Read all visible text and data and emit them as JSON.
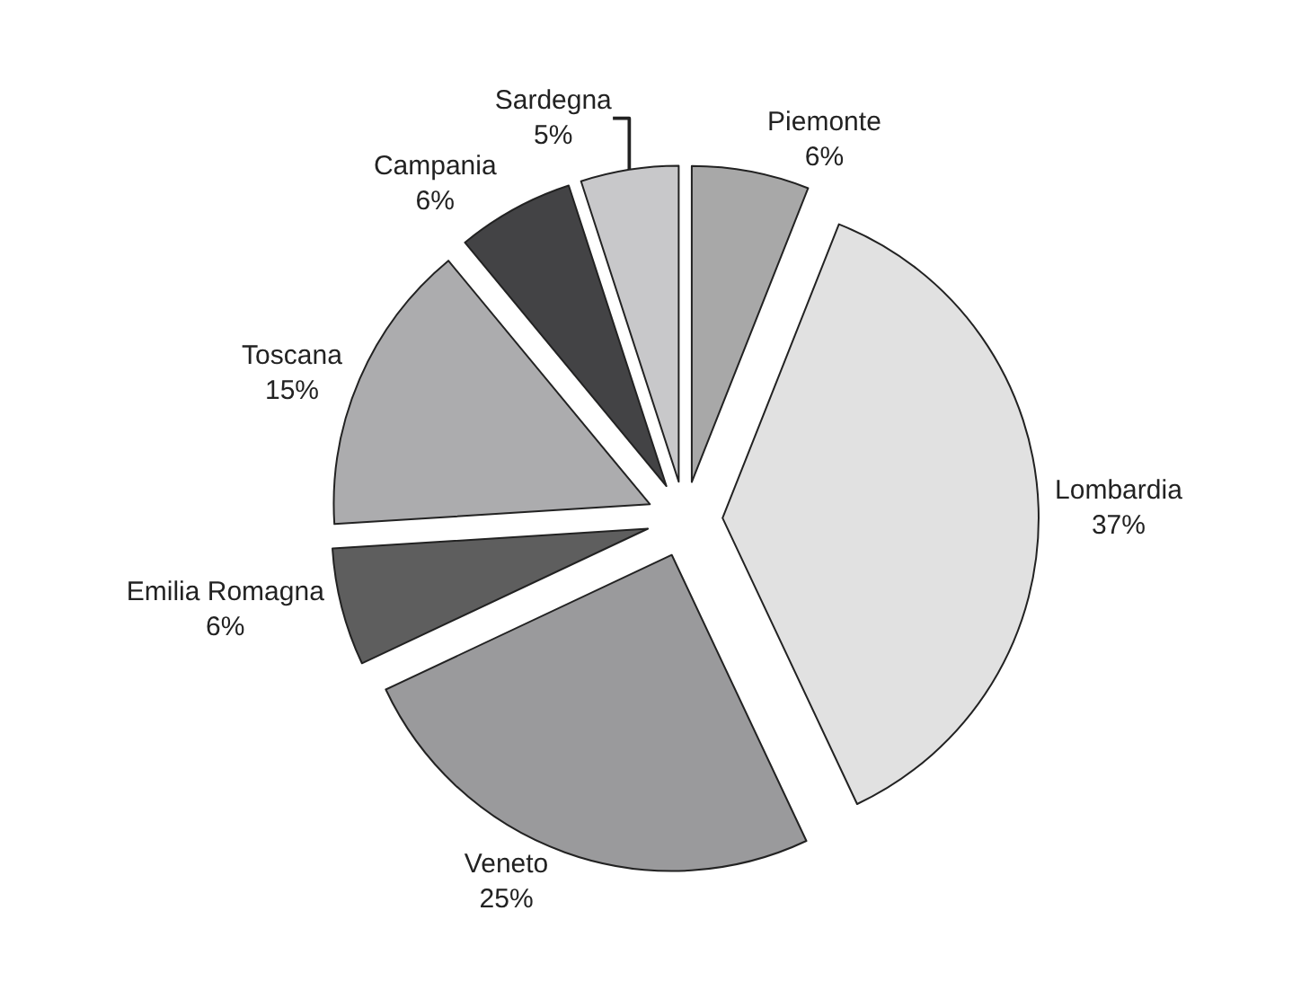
{
  "chart_data": {
    "type": "pie",
    "categories": [
      "Piemonte",
      "Lombardia",
      "Veneto",
      "Emilia Romagna",
      "Toscana",
      "Campania",
      "Sardegna"
    ],
    "values": [
      6,
      37,
      25,
      6,
      15,
      6,
      5
    ],
    "value_labels": [
      "6%",
      "37%",
      "25%",
      "6%",
      "15%",
      "6%",
      "5%"
    ],
    "colors": [
      "#a8a8a8",
      "#e1e1e1",
      "#9a9a9c",
      "#5e5e5e",
      "#acacae",
      "#434345",
      "#c8c8ca"
    ],
    "legend": false
  }
}
